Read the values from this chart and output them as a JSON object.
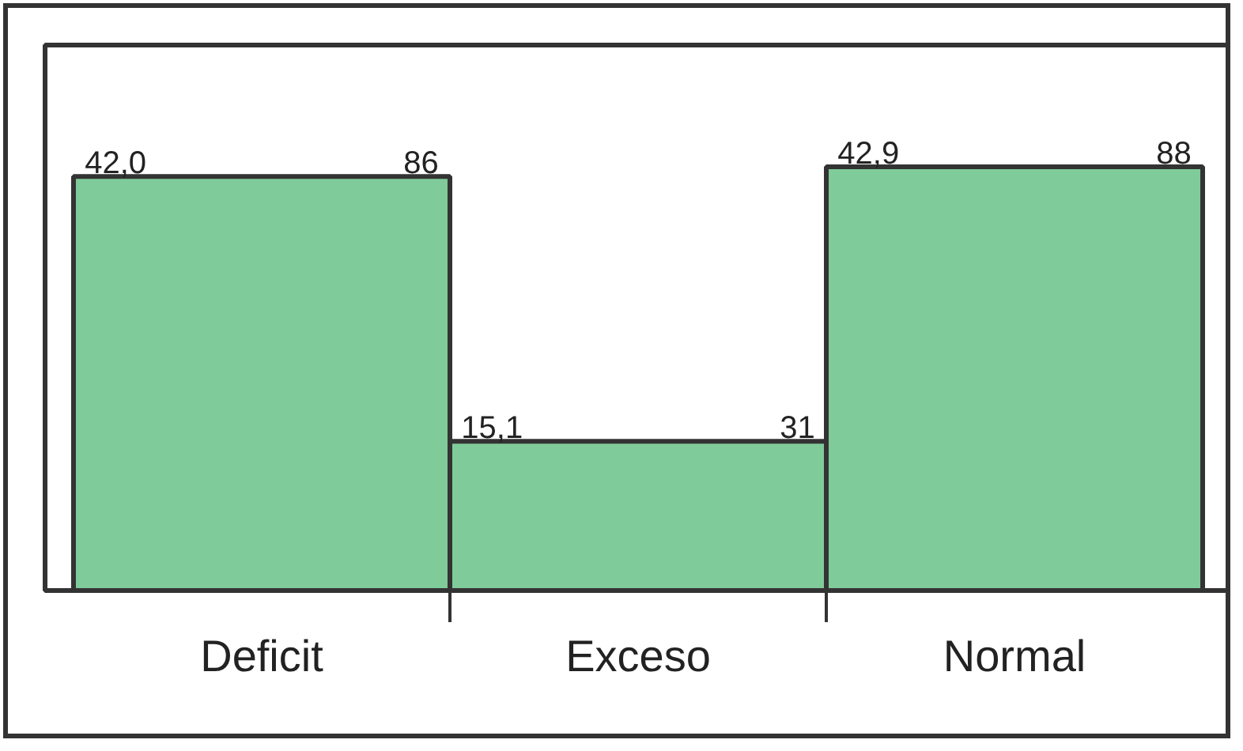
{
  "chart_data": {
    "type": "bar",
    "categories": [
      "Deficit",
      "Exceso",
      "Normal"
    ],
    "values": [
      86,
      31,
      88
    ],
    "color": "#80cb9a",
    "data_labels": true,
    "grid": false,
    "annotations": [
      "42,0",
      "15,1",
      "42,9"
    ]
  }
}
